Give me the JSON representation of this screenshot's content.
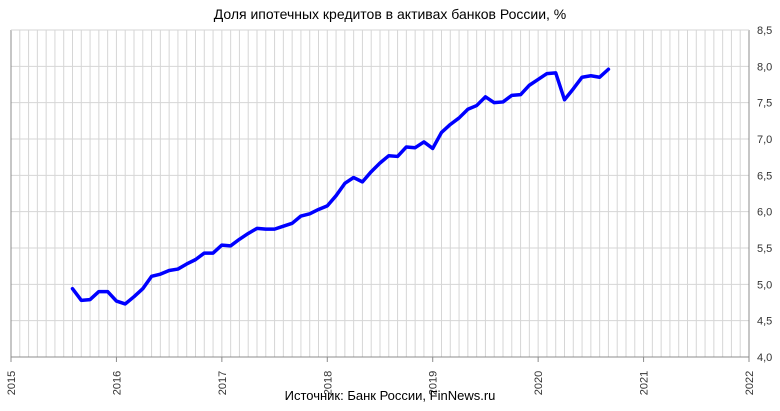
{
  "chart_data": {
    "type": "line",
    "title": "Доля ипотечных кредитов в активах банков России, %",
    "source": "Источник: Банк России, FinNews.ru",
    "xlabel": "",
    "ylabel": "",
    "x_ticks": [
      "2015",
      "2016",
      "2017",
      "2018",
      "2019",
      "2020",
      "2021",
      "2022"
    ],
    "y_ticks": [
      "4,0",
      "4,5",
      "5,0",
      "5,5",
      "6,0",
      "6,5",
      "7,0",
      "7,5",
      "8,0",
      "8,5"
    ],
    "ylim": [
      4.0,
      8.5
    ],
    "xlim": [
      "2015-01",
      "2022-01"
    ],
    "y_axis_position": "right",
    "grid": true,
    "legend": "none",
    "line_color": "#0000ff",
    "series": [
      {
        "x": [
          "2015-08",
          "2015-09",
          "2015-10",
          "2015-11",
          "2015-12",
          "2016-01",
          "2016-02",
          "2016-03",
          "2016-04",
          "2016-05",
          "2016-06",
          "2016-07",
          "2016-08",
          "2016-09",
          "2016-10",
          "2016-11",
          "2016-12",
          "2017-01",
          "2017-02",
          "2017-03",
          "2017-04",
          "2017-05",
          "2017-06",
          "2017-07",
          "2017-08",
          "2017-09",
          "2017-10",
          "2017-11",
          "2017-12",
          "2018-01",
          "2018-02",
          "2018-03",
          "2018-04",
          "2018-05",
          "2018-06",
          "2018-07",
          "2018-08",
          "2018-09",
          "2018-10",
          "2018-11",
          "2018-12",
          "2019-01",
          "2019-02",
          "2019-03",
          "2019-04",
          "2019-05",
          "2019-06",
          "2019-07",
          "2019-08",
          "2019-09",
          "2019-10",
          "2019-11",
          "2019-12",
          "2020-01",
          "2020-02",
          "2020-03",
          "2020-04",
          "2020-05",
          "2020-06",
          "2020-07",
          "2020-08",
          "2020-09"
        ],
        "y": [
          4.94,
          4.78,
          4.79,
          4.9,
          4.9,
          4.77,
          4.73,
          4.83,
          4.94,
          5.11,
          5.14,
          5.19,
          5.21,
          5.28,
          5.34,
          5.43,
          5.43,
          5.54,
          5.53,
          5.62,
          5.7,
          5.77,
          5.76,
          5.76,
          5.8,
          5.84,
          5.94,
          5.97,
          6.03,
          6.08,
          6.22,
          6.39,
          6.47,
          6.41,
          6.55,
          6.67,
          6.77,
          6.76,
          6.89,
          6.88,
          6.96,
          6.87,
          7.09,
          7.2,
          7.29,
          7.41,
          7.46,
          7.58,
          7.5,
          7.51,
          7.6,
          7.61,
          7.74,
          7.82,
          7.9,
          7.91,
          7.54,
          7.69,
          7.85,
          7.87,
          7.85,
          7.96
        ]
      }
    ]
  }
}
